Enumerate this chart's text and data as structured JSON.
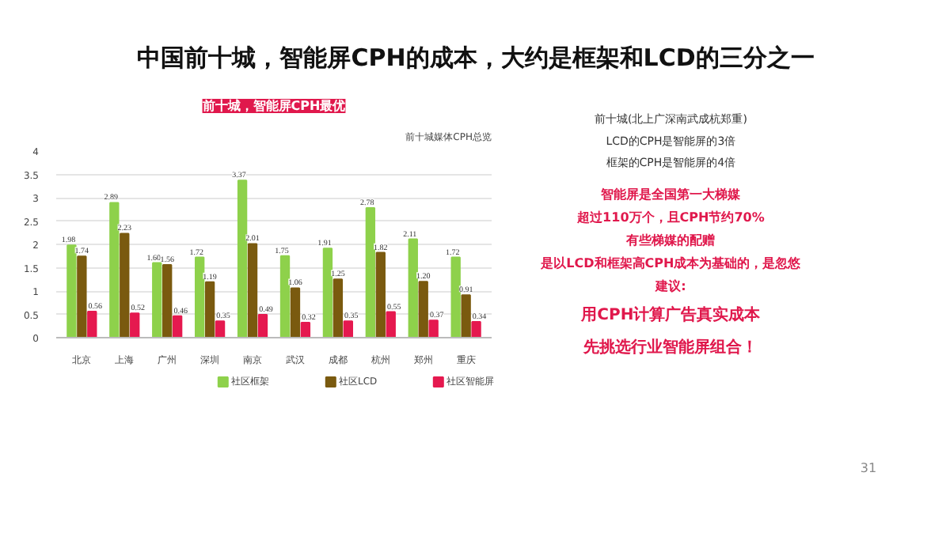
{
  "chart_data": {
    "type": "bar",
    "title": "中国前十城，智能屏CPH的成本，大约是框架和LCD的三分之一",
    "subtitle": "前十城，智能屏CPH最优",
    "categories": [
      "北京",
      "上海",
      "广州",
      "深圳",
      "南京",
      "武汉",
      "成都",
      "杭州",
      "郑州",
      "重庆"
    ],
    "series": [
      {
        "name": "社区框架",
        "color": "#8ed14b",
        "values": [
          1.98,
          2.89,
          1.6,
          1.72,
          3.37,
          1.75,
          1.91,
          2.78,
          2.11,
          1.72
        ],
        "value_labels": [
          "1.98",
          "2.89",
          "1.60",
          "1.72",
          "3.37",
          "1.75",
          "1.91",
          "2.78",
          "2.11",
          "1.72"
        ]
      },
      {
        "name": "社区LCD",
        "color": "#7a5a0f",
        "values": [
          1.74,
          2.23,
          1.56,
          1.19,
          2.01,
          1.06,
          1.25,
          1.82,
          1.2,
          0.91
        ],
        "value_labels": [
          "1.74",
          "2.23",
          "1.56",
          "1.19",
          "2.01",
          "1.06",
          "1.25",
          "1.82",
          "1.20",
          "0.91"
        ]
      },
      {
        "name": "社区智能屏",
        "color": "#e5194f",
        "values": [
          0.56,
          0.52,
          0.46,
          0.35,
          0.49,
          0.32,
          0.35,
          0.55,
          0.37,
          0.34
        ],
        "value_labels": [
          "0.56",
          "0.52",
          "0.46",
          "0.35",
          "0.49",
          "0.32",
          "0.35",
          "0.55",
          "0.37",
          "0.34"
        ]
      }
    ],
    "ylim": [
      0,
      4
    ],
    "yticks": [
      0,
      0.5,
      1,
      1.5,
      2,
      2.5,
      3,
      3.5,
      4
    ],
    "grid": "y",
    "legend": "bottom",
    "annotations": [
      "前十城媒体CPH总览",
      "前十城(北上广深南武成杭郑重)",
      "LCD的CPH是智能屏的3倍",
      "框架的CPH是智能屏的4倍",
      "智能屏是全国第一大梯媒",
      "超过110万个，且CPH节约70%",
      "有些梯媒的配赠",
      "是以LCD和框架高CPH成本为基础的，是忽悠",
      "建议:",
      "用CPH计算广告真实成本",
      "先挑选行业智能屏组合！",
      "31"
    ]
  }
}
